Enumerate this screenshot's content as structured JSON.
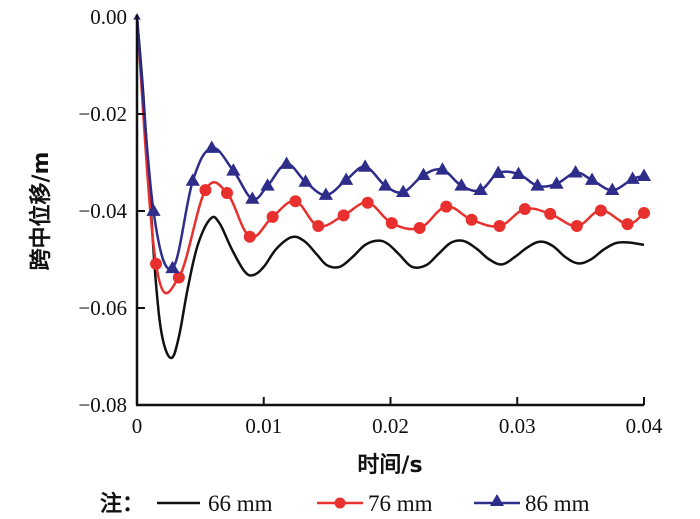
{
  "chart_data": {
    "type": "line",
    "title": "",
    "xlabel": "时间/s",
    "ylabel": "跨中位移/m",
    "xlim": [
      0,
      0.04
    ],
    "ylim": [
      -0.08,
      0.0
    ],
    "xticks": [
      0,
      0.01,
      0.02,
      0.03,
      0.04
    ],
    "xtick_labels": [
      "0",
      "0.01",
      "0.02",
      "0.03",
      "0.04"
    ],
    "yticks": [
      0.0,
      -0.02,
      -0.04,
      -0.06,
      -0.08
    ],
    "ytick_labels": [
      "0.00",
      "−0.02",
      "−0.04",
      "−0.06",
      "−0.08"
    ],
    "grid": false,
    "legend_prefix": "注：",
    "legend_position": "bottom",
    "series": [
      {
        "name": "66 mm",
        "color": "#111111",
        "marker": "none",
        "x": [
          0,
          0.0005,
          0.001,
          0.0015,
          0.002,
          0.0027,
          0.0033,
          0.004,
          0.0048,
          0.0058,
          0.0065,
          0.0075,
          0.0085,
          0.0092,
          0.01,
          0.011,
          0.0122,
          0.0132,
          0.0142,
          0.015,
          0.016,
          0.017,
          0.018,
          0.019,
          0.0198,
          0.0207,
          0.0217,
          0.0228,
          0.0238,
          0.0248,
          0.0258,
          0.0268,
          0.0278,
          0.0288,
          0.0298,
          0.0308,
          0.0318,
          0.0328,
          0.0338,
          0.0348,
          0.0358,
          0.0368,
          0.0378,
          0.0388,
          0.04
        ],
        "y": [
          0.0,
          -0.016,
          -0.036,
          -0.055,
          -0.066,
          -0.0703,
          -0.066,
          -0.056,
          -0.047,
          -0.0416,
          -0.0425,
          -0.048,
          -0.0525,
          -0.0532,
          -0.0515,
          -0.0478,
          -0.0454,
          -0.0462,
          -0.049,
          -0.0512,
          -0.0515,
          -0.0495,
          -0.047,
          -0.0461,
          -0.0468,
          -0.049,
          -0.0515,
          -0.0512,
          -0.0488,
          -0.0465,
          -0.0462,
          -0.0478,
          -0.05,
          -0.051,
          -0.0495,
          -0.0475,
          -0.0463,
          -0.0472,
          -0.0495,
          -0.0508,
          -0.05,
          -0.048,
          -0.0466,
          -0.0465,
          -0.047
        ]
      },
      {
        "name": "76 mm",
        "color": "#e8312f",
        "marker": "circle",
        "x": [
          0,
          0.0015,
          0.0033,
          0.0054,
          0.0071,
          0.0089,
          0.0107,
          0.0125,
          0.0143,
          0.0163,
          0.0182,
          0.0201,
          0.0223,
          0.0244,
          0.0264,
          0.0286,
          0.0306,
          0.0326,
          0.0347,
          0.0366,
          0.0387,
          0.04
        ],
        "y": [
          0.0,
          -0.0509,
          -0.0537,
          -0.0357,
          -0.0363,
          -0.0453,
          -0.0412,
          -0.038,
          -0.0431,
          -0.0409,
          -0.0383,
          -0.0425,
          -0.0435,
          -0.0391,
          -0.0418,
          -0.0431,
          -0.0396,
          -0.0406,
          -0.0431,
          -0.0399,
          -0.0427,
          -0.0404
        ]
      },
      {
        "name": "86 mm",
        "color": "#2e2d8a",
        "marker": "triangle",
        "x": [
          0,
          0.0013,
          0.0028,
          0.0044,
          0.0059,
          0.0076,
          0.0091,
          0.0103,
          0.0118,
          0.0133,
          0.0149,
          0.0165,
          0.018,
          0.0196,
          0.021,
          0.0226,
          0.0241,
          0.0256,
          0.0271,
          0.0285,
          0.0301,
          0.0316,
          0.0331,
          0.0346,
          0.0359,
          0.0375,
          0.0391,
          0.04
        ],
        "y": [
          0.0,
          -0.04,
          -0.0518,
          -0.0338,
          -0.027,
          -0.0317,
          -0.0375,
          -0.0348,
          -0.0303,
          -0.034,
          -0.0367,
          -0.0336,
          -0.0309,
          -0.0348,
          -0.0361,
          -0.0326,
          -0.0315,
          -0.0348,
          -0.0357,
          -0.0322,
          -0.0324,
          -0.0348,
          -0.0344,
          -0.0321,
          -0.0336,
          -0.0357,
          -0.0334,
          -0.0328
        ]
      }
    ]
  }
}
